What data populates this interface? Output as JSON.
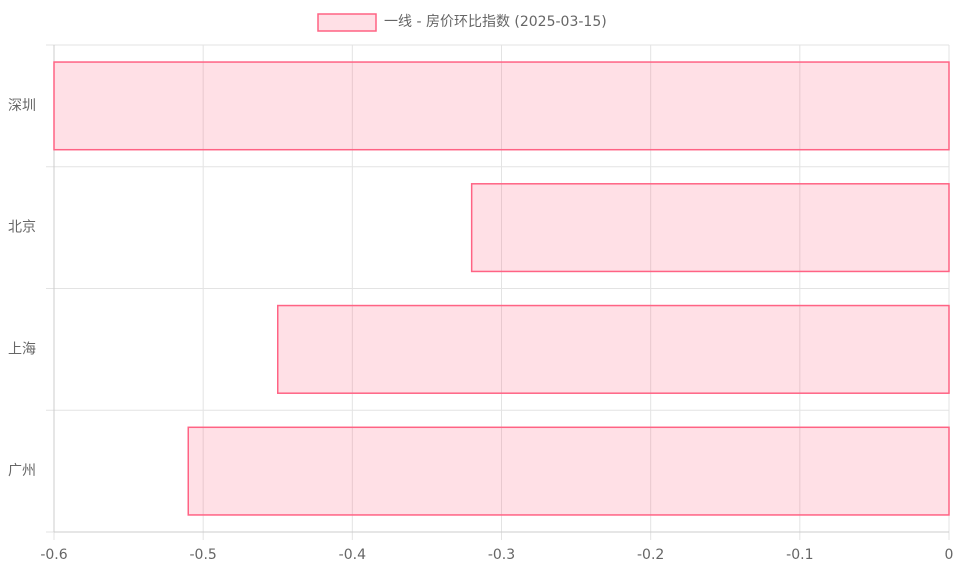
{
  "chart_data": {
    "type": "bar",
    "orientation": "horizontal",
    "categories": [
      "深圳",
      "北京",
      "上海",
      "广州"
    ],
    "series": [
      {
        "name": "一线 - 房价环比指数 (2025-03-15)",
        "color": "#ff6384",
        "values": [
          -0.6,
          -0.32,
          -0.45,
          -0.51
        ]
      }
    ],
    "xlim": [
      -0.6,
      0
    ],
    "xticks": [
      -0.6,
      -0.5,
      -0.4,
      -0.3,
      -0.2,
      -0.1,
      0
    ],
    "grid": true,
    "legend": "top"
  }
}
